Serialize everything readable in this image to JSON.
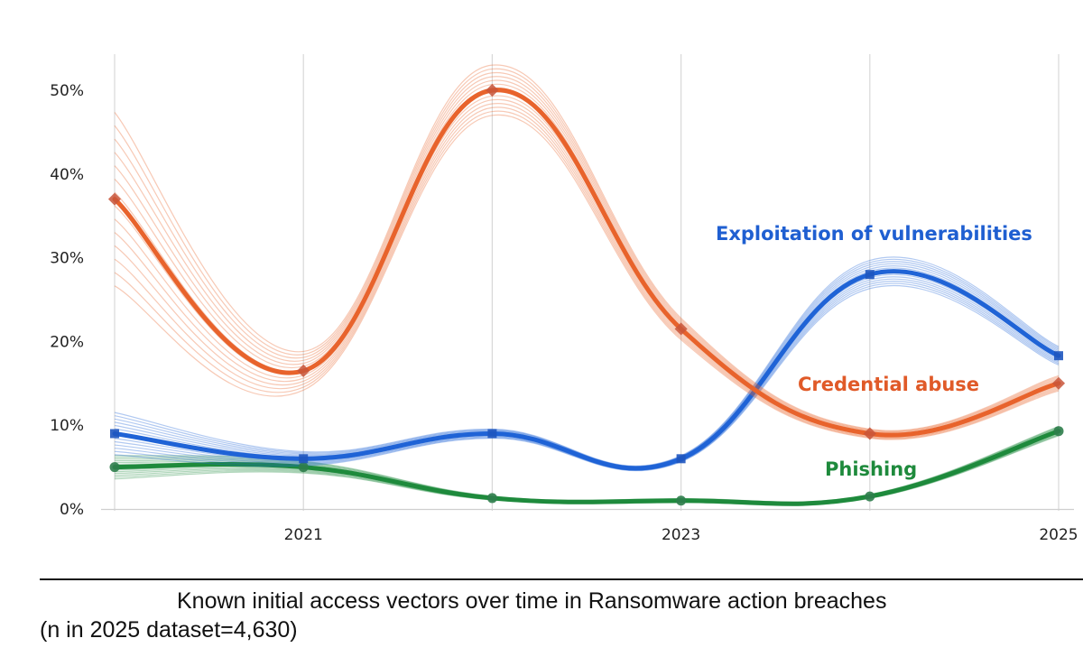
{
  "chart_data": {
    "type": "line",
    "x": [
      "2020",
      "2021",
      "2022",
      "2023",
      "2024",
      "2025"
    ],
    "x_tick_labels": [
      "2021",
      "2023",
      "2025"
    ],
    "y_tick_labels": [
      "0%",
      "10%",
      "20%",
      "30%",
      "40%",
      "50%"
    ],
    "ylim": [
      0,
      50
    ],
    "grid": "vertical",
    "series": [
      {
        "name": "Credential abuse",
        "values": [
          37,
          16.5,
          50,
          21.5,
          9,
          15
        ],
        "color": "#e8632c",
        "marker": "diamond"
      },
      {
        "name": "Exploitation of vulnerabilities",
        "values": [
          9,
          6,
          9,
          6,
          28,
          18.3
        ],
        "color": "#1f63d6",
        "marker": "square"
      },
      {
        "name": "Phishing",
        "values": [
          5,
          5,
          1.3,
          1,
          1.5,
          9.3
        ],
        "color": "#1e8a3c",
        "marker": "circle"
      }
    ]
  },
  "caption": {
    "line1": "Known initial access vectors over time in Ransomware action breaches",
    "line2": "(n in 2025 dataset=4,630)"
  }
}
